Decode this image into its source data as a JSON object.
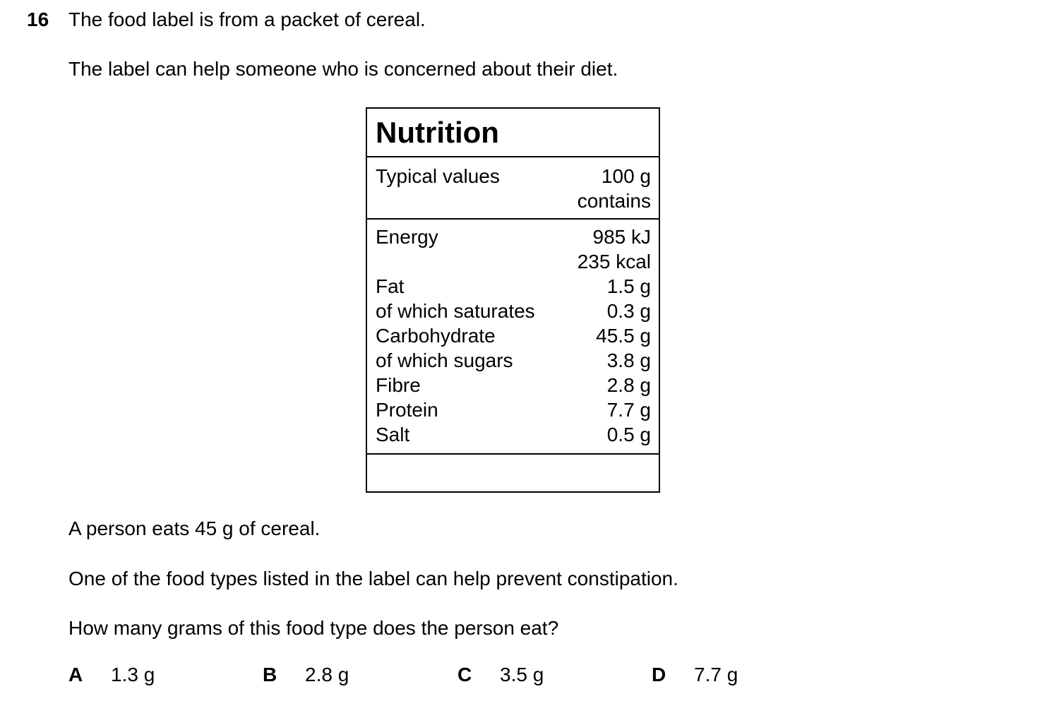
{
  "question": {
    "number": "16",
    "intro": "The food label is from a packet of cereal.",
    "context": "The label can help someone who is concerned about their diet.",
    "scenario": "A person eats 45 g of cereal.",
    "hint": "One of the food types listed in the label can help prevent constipation.",
    "prompt": "How many grams of this food type does the person eat?"
  },
  "label": {
    "title": "Nutrition",
    "header_left": "Typical values",
    "header_right_1": "100 g",
    "header_right_2": "contains",
    "rows": [
      {
        "name": "Energy",
        "value": "985 kJ"
      },
      {
        "name": "",
        "value": "235 kcal"
      },
      {
        "name": "Fat",
        "value": "1.5 g"
      },
      {
        "name": "of which saturates",
        "value": "0.3 g"
      },
      {
        "name": "Carbohydrate",
        "value": "45.5 g"
      },
      {
        "name": "of which sugars",
        "value": "3.8 g"
      },
      {
        "name": "Fibre",
        "value": "2.8 g"
      },
      {
        "name": "Protein",
        "value": "7.7 g"
      },
      {
        "name": "Salt",
        "value": "0.5 g"
      }
    ]
  },
  "options": [
    {
      "letter": "A",
      "value": "1.3 g"
    },
    {
      "letter": "B",
      "value": "2.8 g"
    },
    {
      "letter": "C",
      "value": "3.5 g"
    },
    {
      "letter": "D",
      "value": "7.7 g"
    }
  ]
}
